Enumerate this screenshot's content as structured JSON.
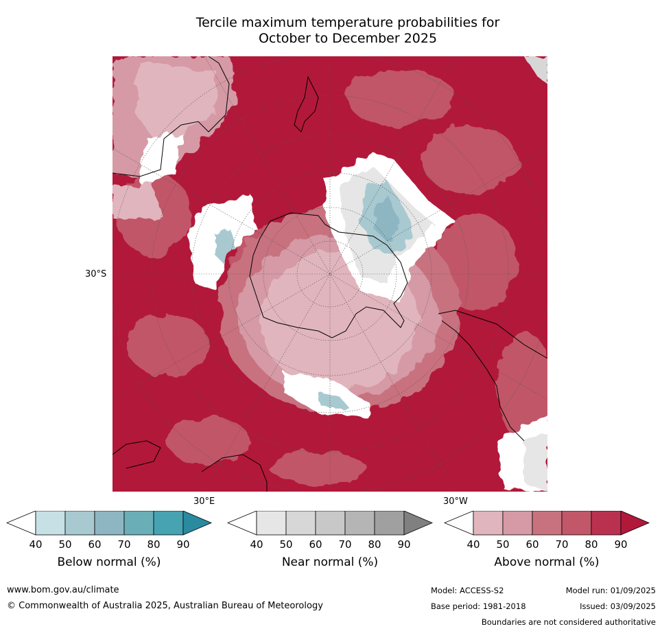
{
  "title": {
    "line1": "Tercile maximum temperature probabilities for",
    "line2": "October to December 2025"
  },
  "map": {
    "projection": "south-polar-stereographic",
    "lat_label": "30°S",
    "lon_labels": [
      "30°E",
      "30°W"
    ],
    "colors": {
      "ocean_warm": "#b2183a",
      "land_line": "#000000",
      "grid_line": "#555555"
    }
  },
  "legends": [
    {
      "id": "below",
      "title": "Below normal (%)",
      "ticks": [
        "40",
        "50",
        "60",
        "70",
        "80",
        "90"
      ],
      "colors": [
        "#ffffff",
        "#c6e0e6",
        "#a8c9d0",
        "#8db6c2",
        "#6aaeb8",
        "#47a2b2",
        "#2a8aa0"
      ]
    },
    {
      "id": "near",
      "title": "Near normal (%)",
      "ticks": [
        "40",
        "50",
        "60",
        "70",
        "80",
        "90"
      ],
      "colors": [
        "#ffffff",
        "#e6e6e6",
        "#d7d7d7",
        "#c8c8c8",
        "#b5b5b5",
        "#a0a0a0",
        "#808080"
      ]
    },
    {
      "id": "above",
      "title": "Above normal (%)",
      "ticks": [
        "40",
        "50",
        "60",
        "70",
        "80",
        "90"
      ],
      "colors": [
        "#ffffff",
        "#e1b5bd",
        "#d59aa5",
        "#c8727f",
        "#c15768",
        "#ba3150",
        "#b2183a"
      ]
    }
  ],
  "footer": {
    "website": "www.bom.gov.au/climate",
    "copyright": "© Commonwealth of Australia 2025, Australian Bureau of Meteorology",
    "model": "Model: ACCESS-S2",
    "base_period": "Base period: 1981-2018",
    "model_run": "Model run: 01/09/2025",
    "issued": "Issued: 03/09/2025",
    "disclaimer": "Boundaries are not considered authoritative"
  }
}
